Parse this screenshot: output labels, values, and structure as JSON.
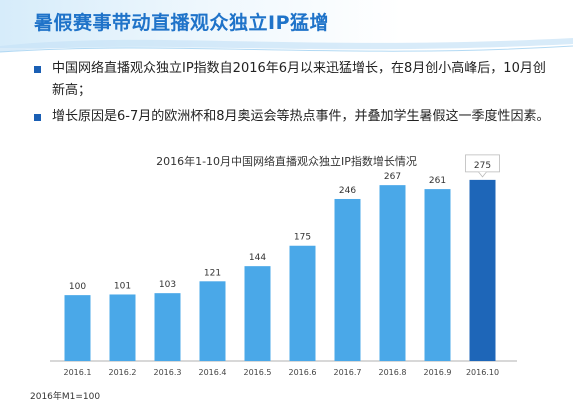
{
  "title": "暑假赛事带动直播观众独立IP猛增",
  "bullets": [
    "中国网络直播观众独立IP指数自2016年6月以来迅猛增长，在8月创小高峰后，10月创新高；",
    "增长原因是6-7月的欧洲杯和8月奥运会等热点事件，并叠加学生暑假这一季度性因素。"
  ],
  "footnote": "2016年M1=100",
  "colors": {
    "title": "#1f73c9",
    "bar": "#4aa8e8",
    "bar_highlight": "#1e66b8",
    "bullet_marker": "#1a5fb4"
  },
  "chart_data": {
    "type": "bar",
    "title": "2016年1-10月中国网络直播观众独立IP指数增长情况",
    "categories": [
      "2016.1",
      "2016.2",
      "2016.3",
      "2016.4",
      "2016.5",
      "2016.6",
      "2016.7",
      "2016.8",
      "2016.9",
      "2016.10"
    ],
    "values": [
      100,
      101,
      103,
      121,
      144,
      175,
      246,
      267,
      261,
      275
    ],
    "highlight_category": "2016.10",
    "ylim": [
      0,
      290
    ],
    "grid": false,
    "xlabel": "",
    "ylabel": ""
  }
}
